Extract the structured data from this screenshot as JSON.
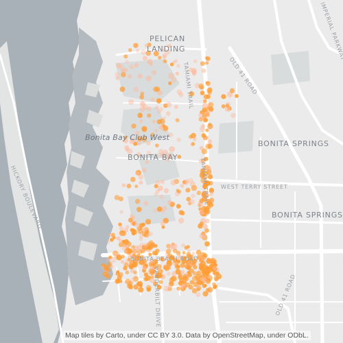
{
  "labels": {
    "pelican_landing_1": "PELICAN",
    "pelican_landing_2": "LANDING",
    "bonita_bay_club_west": "Bonita Bay Club West",
    "bonita_bay": "BONITA BAY",
    "bonita_springs": "BONITA SPRINGS",
    "bonita_springs_2": "BONITA SPRINGS",
    "tamiami_trail_north": "TAMIAMI TRAIL",
    "tamiami_trail_south": "TAMIAMI TRAIL",
    "old_41_road_north": "OLD 41 ROAD",
    "old_41_road_south": "OLD 41 ROAD",
    "west_terry_street": "WEST TERRY STREET",
    "hickory_boulevard": "HICKORY BOULEVARD",
    "bonita_beach_road": "BONITA BEACH ROAD",
    "vanderbilt_drive": "VANDERBILT DRIVE",
    "imperial_parkway": "IMPERIAL PARKWAY"
  },
  "attribution": "Map tiles by Carto, under CC BY 3.0. Data by OpenStreetMap, under ODbL.",
  "colors": {
    "water": "#a9b1b8",
    "land": "#ebebeb",
    "park": "#d8dbdb",
    "road": "#ffffff",
    "dot": "#ff9d34",
    "dot_faint": "#ffb99a"
  }
}
